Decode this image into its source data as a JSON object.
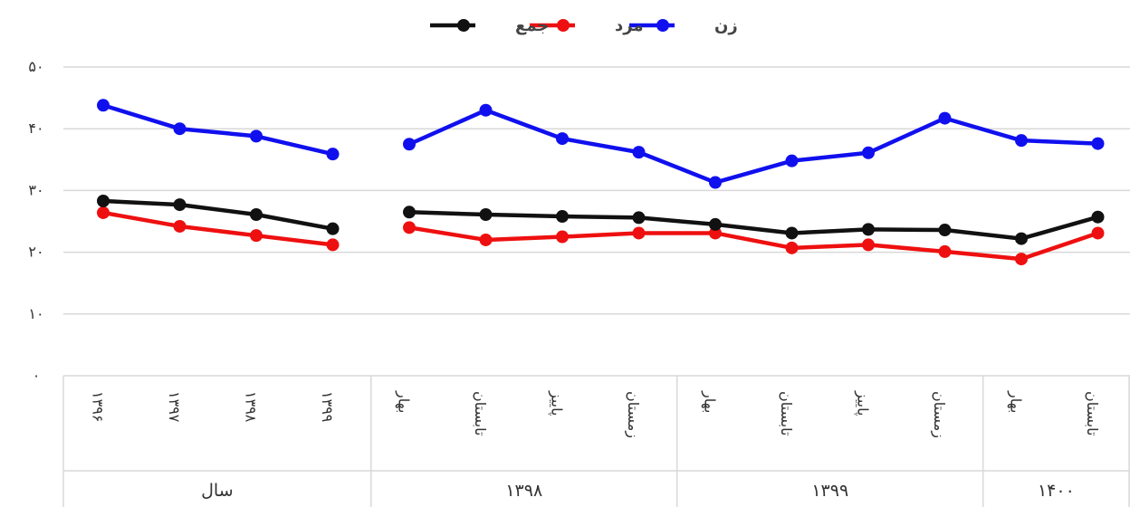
{
  "chart_data": {
    "type": "line",
    "legend": {
      "placement": "top-center"
    },
    "grid": true,
    "ylim": [
      0,
      50
    ],
    "yticks": [
      "۰",
      "۱۰",
      "۲۰",
      "۳۰",
      "۴۰",
      "۵۰"
    ],
    "categories": [
      "۱۳۹۶",
      "۱۳۹۷",
      "۱۳۹۸",
      "۱۳۹۹",
      "بهار",
      "تابستان",
      "پاییز",
      "زمستان",
      "بهار",
      "تابستان",
      "پاییز",
      "زمستان",
      "بهار",
      "تابستان"
    ],
    "groups": [
      {
        "label": "سال",
        "count": 4
      },
      {
        "label": "۱۳۹۸",
        "count": 4
      },
      {
        "label": "۱۳۹۹",
        "count": 4
      },
      {
        "label": "۱۴۰۰",
        "count": 2
      }
    ],
    "series": [
      {
        "name": "زن",
        "color": "#1010ee",
        "segments": [
          [
            43.8,
            40,
            38.8,
            35.9
          ],
          [
            37.5,
            43,
            38.4,
            36.2,
            31.3,
            34.8,
            36.1,
            41.7,
            38.1,
            37.6
          ]
        ]
      },
      {
        "name": "مرد",
        "color": "#ee1010",
        "segments": [
          [
            26.4,
            24.2,
            22.7,
            21.2
          ],
          [
            24,
            22,
            22.5,
            23.1,
            23.1,
            20.7,
            21.2,
            20.1,
            18.9,
            23.1
          ]
        ]
      },
      {
        "name": "جمع",
        "color": "#111111",
        "segments": [
          [
            28.3,
            27.7,
            26.1,
            23.8
          ],
          [
            26.5,
            26.1,
            25.8,
            25.6,
            24.5,
            23.1,
            23.7,
            23.6,
            22.2,
            25.7
          ]
        ]
      }
    ]
  }
}
